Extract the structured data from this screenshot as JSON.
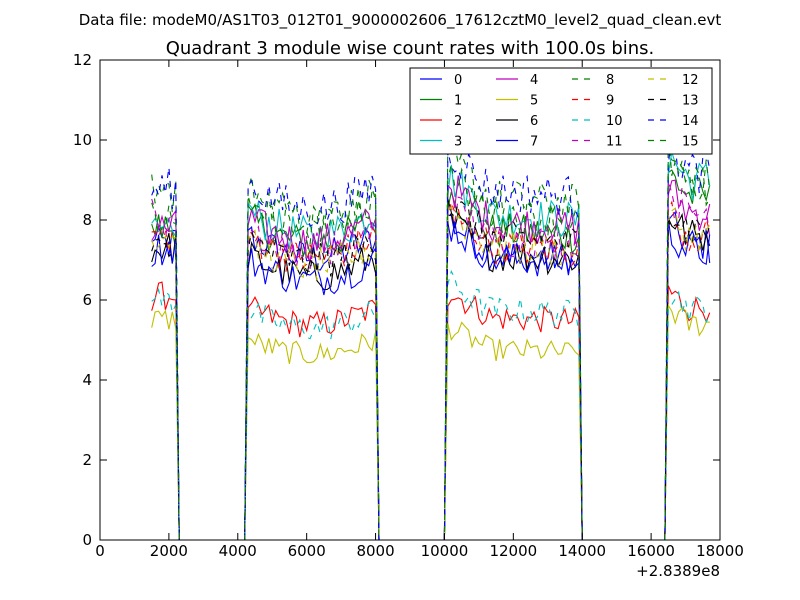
{
  "chart_data": {
    "type": "line",
    "suptitle": "Data file: modeM0/AS1T03_012T01_9000002606_17612cztM0_level2_quad_clean.evt",
    "title": "Quadrant 3 module wise count rates with 100.0s bins.",
    "xlabel": "",
    "ylabel": "",
    "x_offset_label": "+2.8389e8",
    "xlim": [
      0,
      18000
    ],
    "ylim": [
      0,
      12
    ],
    "xticks": [
      0,
      2000,
      4000,
      6000,
      8000,
      10000,
      12000,
      14000,
      16000,
      18000
    ],
    "xtick_labels": [
      "0",
      "2000",
      "4000",
      "6000",
      "8000",
      "10000",
      "12000",
      "14000",
      "16000",
      "18000"
    ],
    "yticks": [
      0,
      2,
      4,
      6,
      8,
      10,
      12
    ],
    "ytick_labels": [
      "0",
      "2",
      "4",
      "6",
      "8",
      "10",
      "12"
    ],
    "grid": false,
    "legend": "top-right",
    "legend_columns": 4,
    "bin_size": 100,
    "x_start": 1500,
    "x_end": 17700,
    "on_intervals": [
      [
        1500,
        2200
      ],
      [
        4300,
        8000
      ],
      [
        10100,
        13900
      ],
      [
        16500,
        17700
      ]
    ],
    "series": [
      {
        "name": "0",
        "color": "#0000ff",
        "dash": "solid",
        "levels": [
          7.4,
          7.6,
          7.2,
          7.4
        ]
      },
      {
        "name": "1",
        "color": "#008000",
        "dash": "solid",
        "levels": [
          7.8,
          8.0,
          7.8,
          8.6
        ]
      },
      {
        "name": "2",
        "color": "#ff0000",
        "dash": "solid",
        "levels": [
          6.1,
          5.8,
          5.6,
          5.8
        ]
      },
      {
        "name": "3",
        "color": "#00bfbf",
        "dash": "solid",
        "levels": [
          7.6,
          8.2,
          8.2,
          9.0
        ]
      },
      {
        "name": "4",
        "color": "#bf00bf",
        "dash": "solid",
        "levels": [
          7.8,
          8.0,
          8.0,
          8.2
        ]
      },
      {
        "name": "5",
        "color": "#bfbf00",
        "dash": "solid",
        "levels": [
          5.5,
          5.0,
          4.8,
          5.4
        ]
      },
      {
        "name": "6",
        "color": "#000000",
        "dash": "solid",
        "levels": [
          7.3,
          7.1,
          7.2,
          7.6
        ]
      },
      {
        "name": "7",
        "color": "#0000ff",
        "dash": "solid",
        "levels": [
          7.3,
          7.0,
          7.1,
          7.2
        ]
      },
      {
        "name": "8",
        "color": "#008000",
        "dash": "dashed",
        "levels": [
          8.7,
          8.7,
          8.6,
          9.0
        ]
      },
      {
        "name": "9",
        "color": "#ff0000",
        "dash": "dashed",
        "levels": [
          7.6,
          7.6,
          7.4,
          7.6
        ]
      },
      {
        "name": "10",
        "color": "#00bfbf",
        "dash": "dashed",
        "levels": [
          6.0,
          5.7,
          5.8,
          5.8
        ]
      },
      {
        "name": "11",
        "color": "#bf00bf",
        "dash": "dashed",
        "levels": [
          8.0,
          7.8,
          7.6,
          8.2
        ]
      },
      {
        "name": "12",
        "color": "#bfbf00",
        "dash": "dashed",
        "levels": [
          7.6,
          7.4,
          7.4,
          7.6
        ]
      },
      {
        "name": "13",
        "color": "#000000",
        "dash": "dashed",
        "levels": [
          7.2,
          7.5,
          7.6,
          7.8
        ]
      },
      {
        "name": "14",
        "color": "#0000ff",
        "dash": "dashed",
        "levels": [
          8.8,
          8.9,
          8.8,
          9.2
        ]
      },
      {
        "name": "15",
        "color": "#008000",
        "dash": "dashed",
        "levels": [
          8.0,
          8.5,
          8.2,
          8.8
        ]
      }
    ]
  }
}
